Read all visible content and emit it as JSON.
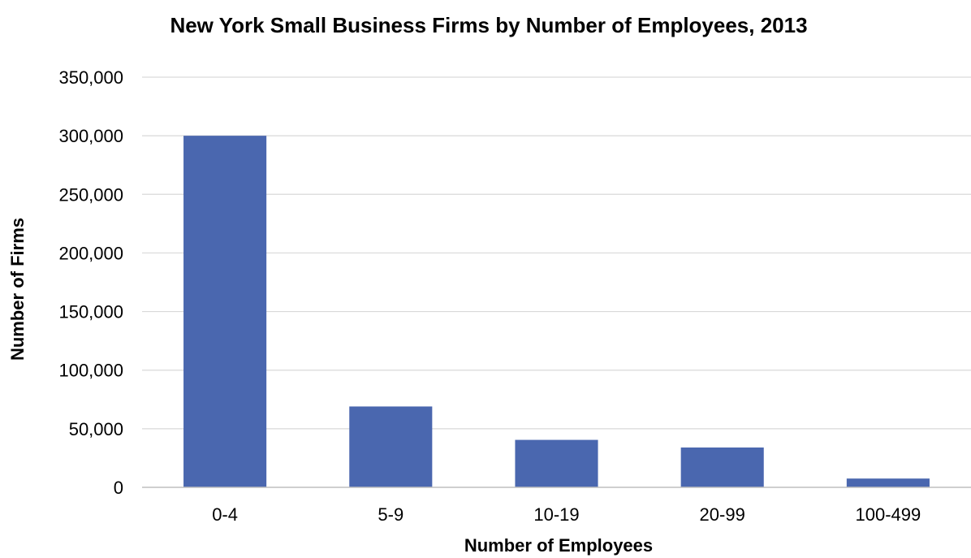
{
  "chart_data": {
    "type": "bar",
    "title": "New York Small Business Firms by Number of Employees, 2013",
    "xlabel": "Number of Employees",
    "ylabel": "Number of Firms",
    "categories": [
      "0-4",
      "5-9",
      "10-19",
      "20-99",
      "100-499"
    ],
    "values": [
      300000,
      69000,
      40500,
      34000,
      7500
    ],
    "ylim": [
      0,
      350000
    ],
    "yticks": [
      0,
      50000,
      100000,
      150000,
      200000,
      250000,
      300000,
      350000
    ],
    "ytick_labels": [
      "0",
      "50,000",
      "100,000",
      "150,000",
      "200,000",
      "250,000",
      "300,000",
      "350,000"
    ],
    "grid": true,
    "legend": "none",
    "bar_color": "#4a67af"
  }
}
